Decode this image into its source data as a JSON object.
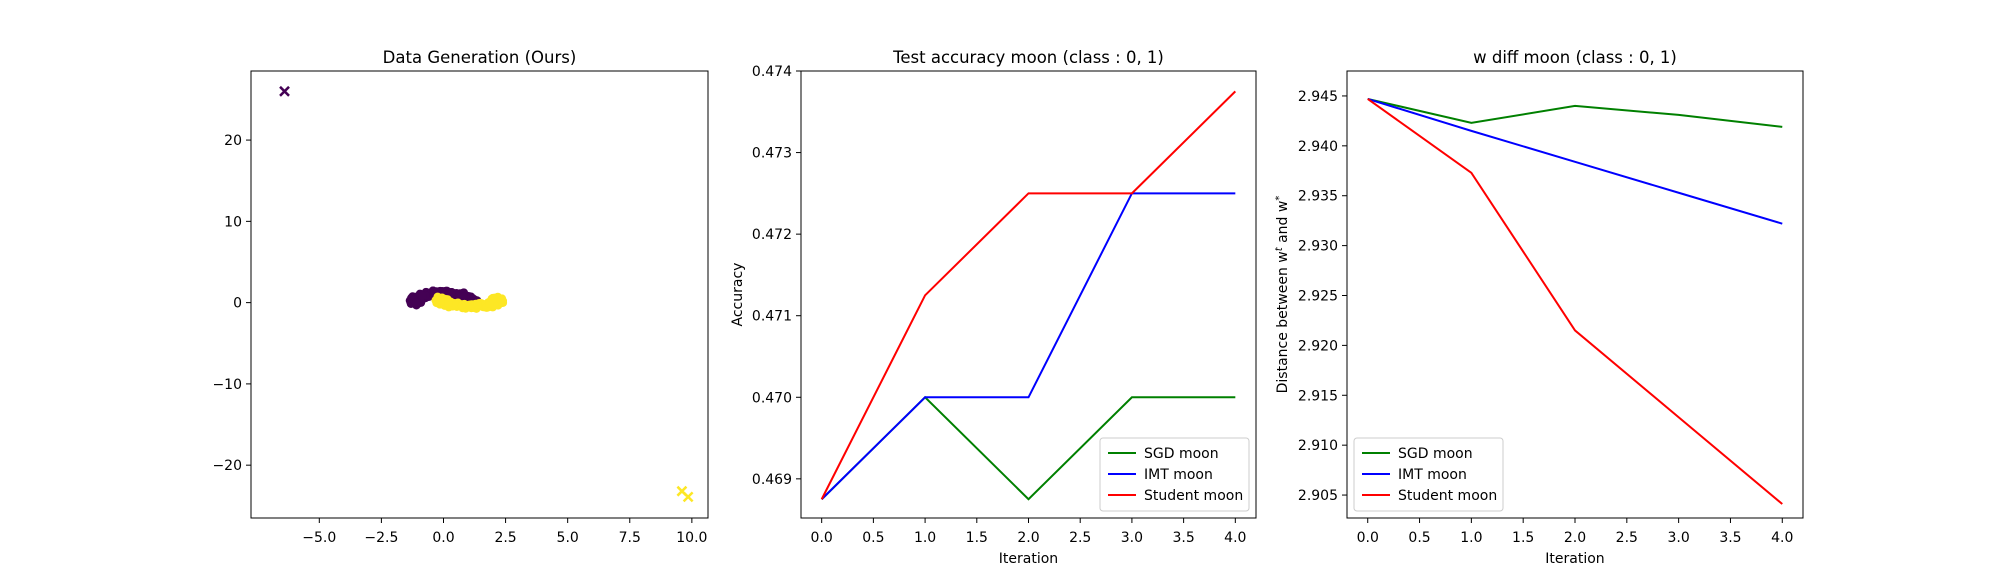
{
  "chart_data": [
    {
      "type": "scatter",
      "title": "Data Generation (Ours)",
      "xlabel": "",
      "ylabel": "",
      "xlim": [
        -7.75,
        10.65
      ],
      "ylim": [
        -26.5,
        28.5
      ],
      "xticks": [
        -5.0,
        -2.5,
        0.0,
        2.5,
        5.0,
        7.5,
        10.0
      ],
      "xtick_labels": [
        "−5.0",
        "−2.5",
        "0.0",
        "2.5",
        "5.0",
        "7.5",
        "10.0"
      ],
      "yticks": [
        -20,
        -10,
        0,
        10,
        20
      ],
      "ytick_labels": [
        "−20",
        "−10",
        "0",
        "10",
        "20"
      ],
      "grid": false,
      "colors": {
        "class0": "#440154",
        "class1": "#fde725"
      },
      "outliers": [
        {
          "class": 0,
          "x": -6.4,
          "y": 26.0
        },
        {
          "class": 1,
          "x": 9.6,
          "y": -23.2
        },
        {
          "class": 1,
          "x": 9.85,
          "y": -23.9
        }
      ]
    },
    {
      "type": "line",
      "title": "Test accuracy moon (class : 0, 1)",
      "xlabel": "Iteration",
      "ylabel": "Accuracy",
      "xlim": [
        -0.2,
        4.2
      ],
      "ylim": [
        0.46852,
        0.474
      ],
      "xticks": [
        0.0,
        0.5,
        1.0,
        1.5,
        2.0,
        2.5,
        3.0,
        3.5,
        4.0
      ],
      "xtick_labels": [
        "0.0",
        "0.5",
        "1.0",
        "1.5",
        "2.0",
        "2.5",
        "3.0",
        "3.5",
        "4.0"
      ],
      "yticks": [
        0.469,
        0.47,
        0.471,
        0.472,
        0.473,
        0.474
      ],
      "ytick_labels": [
        "0.469",
        "0.470",
        "0.471",
        "0.472",
        "0.473",
        "0.474"
      ],
      "grid": false,
      "legend": "lower-right",
      "x": [
        0,
        1,
        2,
        3,
        4
      ],
      "series": [
        {
          "name": "SGD moon",
          "color": "#008000",
          "values": [
            0.46875,
            0.47,
            0.46875,
            0.47,
            0.47
          ]
        },
        {
          "name": "IMT moon",
          "color": "#0000ff",
          "values": [
            0.46875,
            0.47,
            0.47,
            0.4725,
            0.4725
          ]
        },
        {
          "name": "Student moon",
          "color": "#ff0000",
          "values": [
            0.46875,
            0.47125,
            0.4725,
            0.4725,
            0.47375
          ]
        }
      ]
    },
    {
      "type": "line",
      "title": "w diff moon (class : 0, 1)",
      "xlabel": "Iteration",
      "ylabel": "Distance between w",
      "ylabel_sup1": "t",
      "ylabel_mid": " and w",
      "ylabel_sup2": "*",
      "xlim": [
        -0.2,
        4.2
      ],
      "ylim": [
        2.9027,
        2.9475
      ],
      "xticks": [
        0.0,
        0.5,
        1.0,
        1.5,
        2.0,
        2.5,
        3.0,
        3.5,
        4.0
      ],
      "xtick_labels": [
        "0.0",
        "0.5",
        "1.0",
        "1.5",
        "2.0",
        "2.5",
        "3.0",
        "3.5",
        "4.0"
      ],
      "yticks": [
        2.905,
        2.91,
        2.915,
        2.92,
        2.925,
        2.93,
        2.935,
        2.94,
        2.945
      ],
      "ytick_labels": [
        "2.905",
        "2.910",
        "2.915",
        "2.920",
        "2.925",
        "2.930",
        "2.935",
        "2.940",
        "2.945"
      ],
      "grid": false,
      "legend": "lower-left",
      "x": [
        0,
        1,
        2,
        3,
        4
      ],
      "series": [
        {
          "name": "SGD moon",
          "color": "#008000",
          "values": [
            2.9447,
            2.9423,
            2.944,
            2.9431,
            2.9419
          ]
        },
        {
          "name": "IMT moon",
          "color": "#0000ff",
          "values": [
            2.9447,
            2.9415,
            2.9384,
            2.9353,
            2.9322
          ]
        },
        {
          "name": "Student moon",
          "color": "#ff0000",
          "values": [
            2.9447,
            2.9373,
            2.9215,
            2.9128,
            2.9041
          ]
        }
      ]
    }
  ]
}
